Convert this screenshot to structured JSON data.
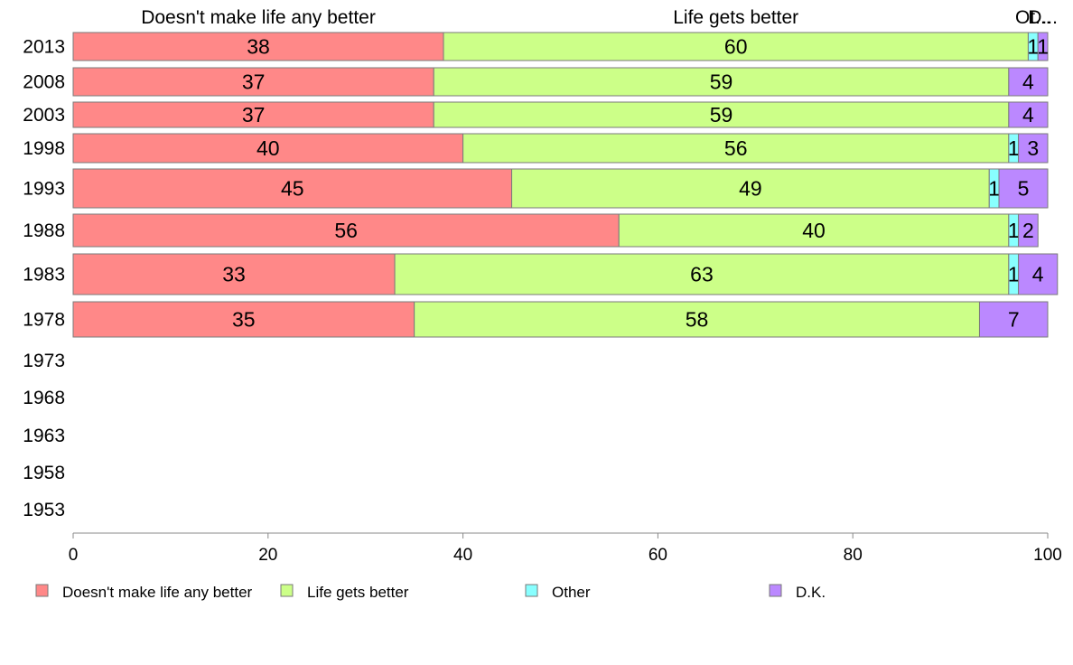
{
  "chart_data": {
    "type": "bar",
    "orientation": "horizontal",
    "stacked": true,
    "categories": [
      "2013",
      "2008",
      "2003",
      "1998",
      "1993",
      "1988",
      "1983",
      "1978",
      "1973",
      "1968",
      "1963",
      "1958",
      "1953"
    ],
    "series": [
      {
        "name": "Doesn't make life any better",
        "color": "#ff8888",
        "values": [
          38,
          37,
          37,
          40,
          45,
          56,
          33,
          35,
          null,
          null,
          null,
          null,
          null
        ]
      },
      {
        "name": "Life gets better",
        "color": "#ccff88",
        "values": [
          60,
          59,
          59,
          56,
          49,
          40,
          63,
          58,
          null,
          null,
          null,
          null,
          null
        ]
      },
      {
        "name": "Other",
        "color": "#88ffff",
        "values": [
          1,
          0,
          0,
          1,
          1,
          1,
          1,
          0,
          null,
          null,
          null,
          null,
          null
        ]
      },
      {
        "name": "D.K.",
        "color": "#bb88ff",
        "values": [
          1,
          4,
          4,
          3,
          5,
          2,
          4,
          7,
          null,
          null,
          null,
          null,
          null
        ]
      }
    ],
    "column_headers": [
      "Doesn't make life any better",
      "Life gets better",
      "Ot...",
      "D..."
    ],
    "xlim": [
      0,
      100
    ],
    "xticks": [
      "0",
      "20",
      "40",
      "60",
      "80",
      "100"
    ],
    "grid": false,
    "legend_position": "bottom"
  }
}
